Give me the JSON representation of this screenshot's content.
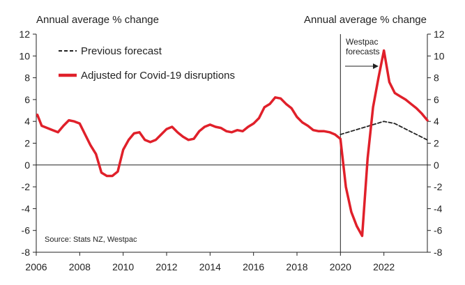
{
  "chart_data": {
    "type": "line",
    "title": "",
    "left_axis_title": "Annual average % change",
    "right_axis_title": "Annual average % change",
    "ylim": [
      -8,
      12
    ],
    "y_ticks": [
      -8,
      -6,
      -4,
      -2,
      0,
      2,
      4,
      6,
      8,
      10,
      12
    ],
    "x_ticks": [
      2006,
      2008,
      2010,
      2012,
      2014,
      2016,
      2018,
      2020,
      2022
    ],
    "xlim": [
      2006,
      2024
    ],
    "forecast_start": 2020,
    "forecast_label_line1": "Westpac",
    "forecast_label_line2": "forecasts",
    "source": "Source: Stats NZ, Westpac",
    "legend": "top-left",
    "series": [
      {
        "name": "Adjusted for Covid-19 disruptions",
        "color": "#e0202a",
        "style": "solid",
        "x": [
          2006.05,
          2006.25,
          2006.5,
          2006.75,
          2007.0,
          2007.25,
          2007.5,
          2007.75,
          2008.0,
          2008.25,
          2008.5,
          2008.75,
          2009.0,
          2009.25,
          2009.5,
          2009.75,
          2010.0,
          2010.25,
          2010.5,
          2010.75,
          2011.0,
          2011.25,
          2011.5,
          2011.75,
          2012.0,
          2012.25,
          2012.5,
          2012.75,
          2013.0,
          2013.25,
          2013.5,
          2013.75,
          2014.0,
          2014.25,
          2014.5,
          2014.75,
          2015.0,
          2015.25,
          2015.5,
          2015.75,
          2016.0,
          2016.25,
          2016.5,
          2016.75,
          2017.0,
          2017.25,
          2017.5,
          2017.75,
          2018.0,
          2018.25,
          2018.5,
          2018.75,
          2019.0,
          2019.25,
          2019.5,
          2019.75,
          2020.0,
          2020.25,
          2020.5,
          2020.75,
          2021.0,
          2021.25,
          2021.5,
          2021.75,
          2022.0,
          2022.25,
          2022.5,
          2022.75,
          2023.0,
          2023.25,
          2023.5,
          2023.75,
          2024.0
        ],
        "values": [
          4.6,
          3.6,
          3.4,
          3.2,
          3.0,
          3.6,
          4.1,
          4.0,
          3.8,
          2.8,
          1.8,
          1.0,
          -0.7,
          -1.0,
          -1.0,
          -0.6,
          1.4,
          2.3,
          2.9,
          3.0,
          2.3,
          2.1,
          2.3,
          2.8,
          3.3,
          3.5,
          3.0,
          2.6,
          2.3,
          2.4,
          3.1,
          3.5,
          3.7,
          3.5,
          3.4,
          3.1,
          3.0,
          3.2,
          3.1,
          3.5,
          3.8,
          4.3,
          5.3,
          5.6,
          6.2,
          6.1,
          5.6,
          5.2,
          4.4,
          3.9,
          3.6,
          3.2,
          3.1,
          3.1,
          3.0,
          2.8,
          2.4,
          -2.0,
          -4.3,
          -5.6,
          -6.5,
          0.6,
          5.3,
          8.0,
          10.5,
          7.6,
          6.6,
          6.3,
          6.0,
          5.6,
          5.2,
          4.7,
          4.1
        ]
      },
      {
        "name": "Previous forecast",
        "color": "#222222",
        "style": "dashed",
        "x": [
          2020.0,
          2020.5,
          2021.0,
          2021.5,
          2022.0,
          2022.5,
          2023.0,
          2023.5,
          2024.0
        ],
        "values": [
          2.8,
          3.1,
          3.4,
          3.7,
          4.0,
          3.8,
          3.3,
          2.8,
          2.3
        ]
      }
    ]
  }
}
